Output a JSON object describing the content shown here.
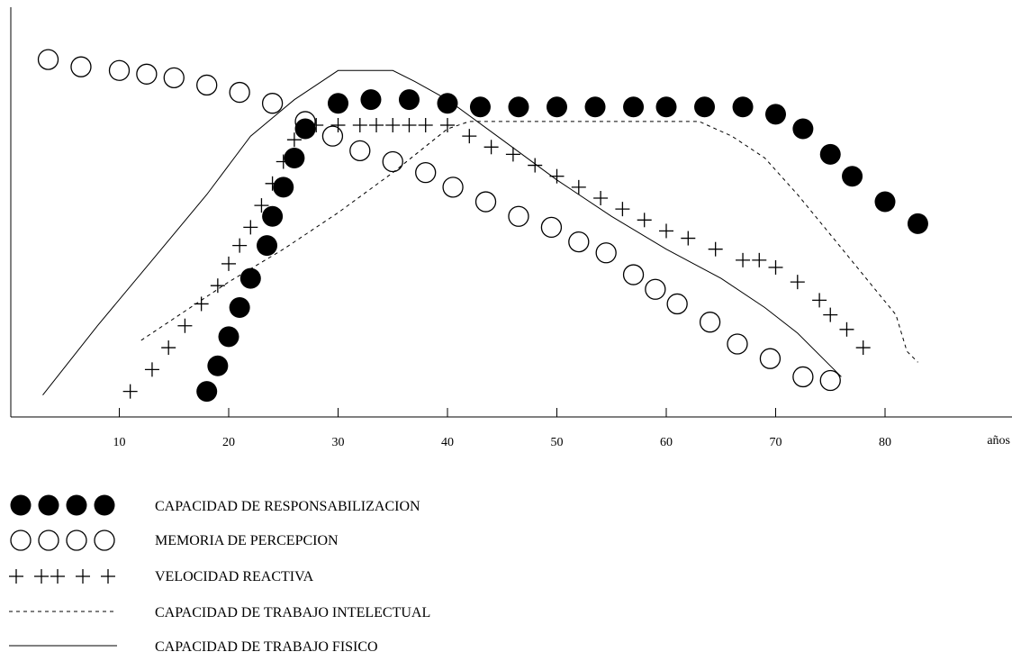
{
  "chart_data": {
    "type": "line",
    "xlabel": "años",
    "ylabel": "",
    "title": "",
    "xlim": [
      0,
      85
    ],
    "ylim": [
      0,
      100
    ],
    "x_ticks": [
      10,
      20,
      30,
      40,
      50,
      60,
      70,
      80
    ],
    "grid": false,
    "legend_position": "bottom-left",
    "series": [
      {
        "name": "CAPACIDAD DE RESPONSABILIZACION",
        "marker": "filled-circle",
        "color": "#000000",
        "points": [
          [
            18,
            7
          ],
          [
            19,
            14
          ],
          [
            20,
            22
          ],
          [
            21,
            30
          ],
          [
            22,
            38
          ],
          [
            23.5,
            47
          ],
          [
            24,
            55
          ],
          [
            25,
            63
          ],
          [
            26,
            71
          ],
          [
            27,
            79
          ],
          [
            30,
            86
          ],
          [
            33,
            87
          ],
          [
            36.5,
            87
          ],
          [
            40,
            86
          ],
          [
            43,
            85
          ],
          [
            46.5,
            85
          ],
          [
            50,
            85
          ],
          [
            53.5,
            85
          ],
          [
            57,
            85
          ],
          [
            60,
            85
          ],
          [
            63.5,
            85
          ],
          [
            67,
            85
          ],
          [
            70,
            83
          ],
          [
            72.5,
            79
          ],
          [
            75,
            72
          ],
          [
            77,
            66
          ],
          [
            80,
            59
          ],
          [
            83,
            53
          ]
        ]
      },
      {
        "name": "MEMORIA DE PERCEPCION",
        "marker": "open-circle",
        "color": "#000000",
        "points": [
          [
            3.5,
            98
          ],
          [
            6.5,
            96
          ],
          [
            10,
            95
          ],
          [
            12.5,
            94
          ],
          [
            15,
            93
          ],
          [
            18,
            91
          ],
          [
            21,
            89
          ],
          [
            24,
            86
          ],
          [
            27,
            81
          ],
          [
            29.5,
            77
          ],
          [
            32,
            73
          ],
          [
            35,
            70
          ],
          [
            38,
            67
          ],
          [
            40.5,
            63
          ],
          [
            43.5,
            59
          ],
          [
            46.5,
            55
          ],
          [
            49.5,
            52
          ],
          [
            52,
            48
          ],
          [
            54.5,
            45
          ],
          [
            57,
            39
          ],
          [
            59,
            35
          ],
          [
            61,
            31
          ],
          [
            64,
            26
          ],
          [
            66.5,
            20
          ],
          [
            69.5,
            16
          ],
          [
            72.5,
            11
          ],
          [
            75,
            10
          ]
        ]
      },
      {
        "name": "VELOCIDAD REACTIVA",
        "marker": "plus",
        "color": "#000000",
        "points": [
          [
            11,
            7
          ],
          [
            13,
            13
          ],
          [
            14.5,
            19
          ],
          [
            16,
            25
          ],
          [
            17.5,
            31
          ],
          [
            19,
            36
          ],
          [
            20,
            42
          ],
          [
            21,
            47
          ],
          [
            22,
            52
          ],
          [
            23,
            58
          ],
          [
            24,
            64
          ],
          [
            25,
            70
          ],
          [
            26,
            76
          ],
          [
            28,
            80
          ],
          [
            30,
            80
          ],
          [
            32,
            80
          ],
          [
            33.5,
            80
          ],
          [
            35,
            80
          ],
          [
            36.5,
            80
          ],
          [
            38,
            80
          ],
          [
            40,
            80
          ],
          [
            42,
            77
          ],
          [
            44,
            74
          ],
          [
            46,
            72
          ],
          [
            48,
            69
          ],
          [
            50,
            66
          ],
          [
            52,
            63
          ],
          [
            54,
            60
          ],
          [
            56,
            57
          ],
          [
            58,
            54
          ],
          [
            60,
            51
          ],
          [
            62,
            49
          ],
          [
            64.5,
            46
          ],
          [
            67,
            43
          ],
          [
            68.5,
            43
          ],
          [
            70,
            41
          ],
          [
            72,
            37
          ],
          [
            74,
            32
          ],
          [
            75,
            28
          ],
          [
            76.5,
            24
          ],
          [
            78,
            19
          ]
        ]
      },
      {
        "name": "CAPACIDAD DE TRABAJO INTELECTUAL",
        "line_style": "dashed",
        "color": "#000000",
        "points": [
          [
            12,
            21
          ],
          [
            15,
            27
          ],
          [
            20,
            37
          ],
          [
            25,
            46
          ],
          [
            30,
            56
          ],
          [
            35,
            67
          ],
          [
            40,
            79
          ],
          [
            42,
            81
          ],
          [
            45,
            81
          ],
          [
            50,
            81
          ],
          [
            55,
            81
          ],
          [
            60,
            81
          ],
          [
            63,
            81
          ],
          [
            66,
            77
          ],
          [
            69,
            71
          ],
          [
            72,
            61
          ],
          [
            75,
            50
          ],
          [
            78,
            39
          ],
          [
            81,
            28
          ],
          [
            82,
            18
          ],
          [
            83,
            15
          ]
        ]
      },
      {
        "name": "CAPACIDAD DE TRABAJO FISICO",
        "line_style": "solid",
        "color": "#000000",
        "points": [
          [
            3,
            6
          ],
          [
            8,
            25
          ],
          [
            13,
            43
          ],
          [
            18,
            61
          ],
          [
            22,
            77
          ],
          [
            26,
            87
          ],
          [
            28.5,
            92
          ],
          [
            30,
            95
          ],
          [
            32,
            95
          ],
          [
            35,
            95
          ],
          [
            37,
            92
          ],
          [
            40,
            87
          ],
          [
            45,
            76
          ],
          [
            50,
            65
          ],
          [
            55,
            55
          ],
          [
            60,
            46
          ],
          [
            65,
            38
          ],
          [
            69,
            30
          ],
          [
            72,
            23
          ],
          [
            75,
            14
          ],
          [
            76,
            11
          ]
        ]
      }
    ]
  }
}
